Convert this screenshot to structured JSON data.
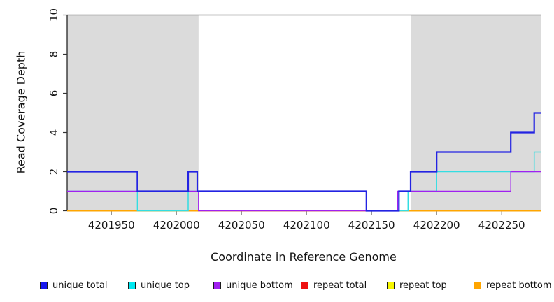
{
  "figure": {
    "bg": "#ffffff"
  },
  "labels": {
    "xlabel": "Coordinate in Reference Genome",
    "ylabel": "Read Coverage Depth"
  },
  "chart_data": {
    "type": "line",
    "subtype": "step",
    "title": "",
    "xlabel": "Coordinate in Reference Genome",
    "ylabel": "Read Coverage Depth",
    "xlim": [
      4201916,
      4202280
    ],
    "ylim": [
      0,
      10
    ],
    "xticks": [
      4201950,
      4202000,
      4202050,
      4202100,
      4202150,
      4202200,
      4202250
    ],
    "yticks": [
      0,
      2,
      4,
      6,
      8,
      10
    ],
    "grid": false,
    "legend_position": "bottom",
    "shaded_region_color": "#dbdbdb",
    "top_border_color": "#8c8c8c",
    "axis_color": "#141414",
    "xtick_color": "#808080",
    "ytick_color": "#333333",
    "shaded_regions": [
      {
        "x0": 4201916,
        "x1": 4202017
      },
      {
        "x0": 4202180,
        "x1": 4202280
      }
    ],
    "series": [
      {
        "id": "repeat-total",
        "label": "repeat total",
        "color": "#ee1111",
        "width": 1.4,
        "points": [
          [
            4201916,
            0
          ]
        ]
      },
      {
        "id": "repeat-top",
        "label": "repeat top",
        "color": "#f7f700",
        "width": 1.4,
        "points": [
          [
            4201916,
            0
          ]
        ]
      },
      {
        "id": "repeat-bottom",
        "label": "repeat bottom",
        "color": "#ffa500",
        "width": 1.8,
        "points": [
          [
            4201916,
            0
          ]
        ]
      },
      {
        "id": "unique-top",
        "label": "unique top",
        "color": "#33dde2",
        "width": 1.5,
        "points": [
          [
            4201916,
            1
          ],
          [
            4201970,
            0
          ],
          [
            4202009,
            1
          ],
          [
            4202146,
            0
          ],
          [
            4202178,
            1
          ],
          [
            4202200,
            2
          ],
          [
            4202275,
            3
          ]
        ]
      },
      {
        "id": "unique-bottom",
        "label": "unique bottom",
        "color": "#a020f0",
        "width": 1.4,
        "points": [
          [
            4201916,
            1
          ],
          [
            4202017,
            0
          ],
          [
            4202170,
            1
          ],
          [
            4202257,
            2
          ]
        ]
      },
      {
        "id": "unique-total",
        "label": "unique total",
        "color": "#2323e2",
        "width": 2.2,
        "points": [
          [
            4201916,
            2
          ],
          [
            4201970,
            1
          ],
          [
            4202009,
            2
          ],
          [
            4202016,
            1
          ],
          [
            4202146,
            0
          ],
          [
            4202171,
            1
          ],
          [
            4202180,
            2
          ],
          [
            4202200,
            3
          ],
          [
            4202257,
            4
          ],
          [
            4202275,
            5
          ]
        ]
      }
    ],
    "legend": {
      "entries": [
        {
          "label": "unique total",
          "color": "#1616ee"
        },
        {
          "label": "unique top",
          "color": "#00e8f0"
        },
        {
          "label": "unique bottom",
          "color": "#a020f0"
        },
        {
          "label": "repeat total",
          "color": "#ee1111"
        },
        {
          "label": "repeat top",
          "color": "#f7f700"
        },
        {
          "label": "repeat bottom",
          "color": "#ffa500"
        }
      ]
    }
  }
}
